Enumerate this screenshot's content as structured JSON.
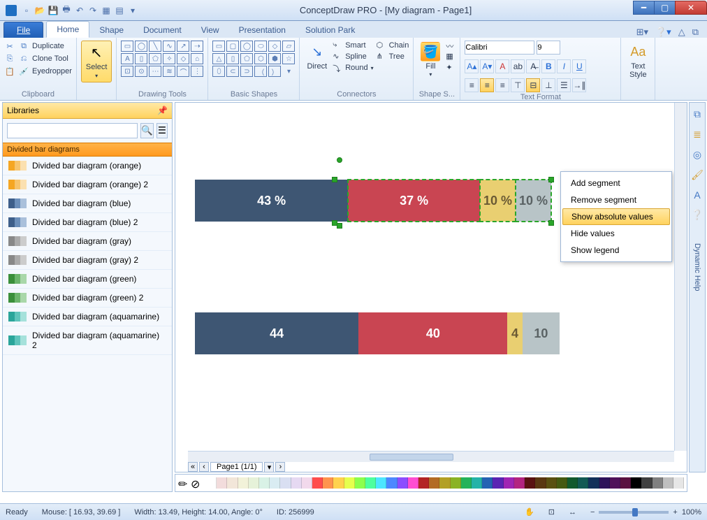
{
  "window": {
    "title": "ConceptDraw PRO - [My diagram - Page1]"
  },
  "tabs": {
    "file": "File",
    "items": [
      "Home",
      "Shape",
      "Document",
      "View",
      "Presentation",
      "Solution Park"
    ],
    "active": "Home"
  },
  "ribbon": {
    "clipboard": {
      "label": "Clipboard",
      "duplicate": "Duplicate",
      "clone": "Clone Tool",
      "eyedropper": "Eyedropper"
    },
    "select": {
      "label": "Select"
    },
    "drawing": {
      "label": "Drawing Tools"
    },
    "basic": {
      "label": "Basic Shapes"
    },
    "connectors": {
      "label": "Connectors",
      "direct": "Direct",
      "smart": "Smart",
      "spline": "Spline",
      "round": "Round",
      "chain": "Chain",
      "tree": "Tree"
    },
    "fill": {
      "label": "Fill"
    },
    "shapestyle": {
      "label": "Shape S..."
    },
    "textformat": {
      "label": "Text Format",
      "font": "Calibri",
      "size": "9"
    },
    "textstyle": {
      "label": "Text\nStyle"
    }
  },
  "libraries": {
    "title": "Libraries",
    "category": "Divided bar diagrams",
    "items": [
      "Divided bar diagram (orange)",
      "Divided bar diagram (orange) 2",
      "Divided bar diagram (blue)",
      "Divided bar diagram (blue) 2",
      "Divided bar diagram (gray)",
      "Divided bar diagram (gray) 2",
      "Divided bar diagram (green)",
      "Divided bar diagram (green) 2",
      "Divided bar diagram (aquamarine)",
      "Divided bar diagram (aquamarine) 2"
    ],
    "thumbColors": [
      [
        "#f5a623",
        "#f7c46c",
        "#fbe0b0"
      ],
      [
        "#f5a623",
        "#f7c46c",
        "#fbe0b0"
      ],
      [
        "#3e5f8a",
        "#6c8fba",
        "#aac0db"
      ],
      [
        "#3e5f8a",
        "#6c8fba",
        "#aac0db"
      ],
      [
        "#888",
        "#aaa",
        "#ccc"
      ],
      [
        "#888",
        "#aaa",
        "#ccc"
      ],
      [
        "#3a8f3a",
        "#6cb56c",
        "#a9d7a9"
      ],
      [
        "#3a8f3a",
        "#6cb56c",
        "#a9d7a9"
      ],
      [
        "#2aa59a",
        "#5fc4bb",
        "#a5e1db"
      ],
      [
        "#2aa59a",
        "#5fc4bb",
        "#a5e1db"
      ]
    ]
  },
  "chart": {
    "bar1": {
      "type": "divided-bar",
      "segments": [
        {
          "label": "43 %",
          "value": 43,
          "color": "#3e5673",
          "textColor": "#ffffff"
        },
        {
          "label": "37 %",
          "value": 37,
          "color": "#c94552",
          "textColor": "#ffffff"
        },
        {
          "label": "10 %",
          "value": 10,
          "color": "#e9cf71",
          "textColor": "#6a5a34"
        },
        {
          "label": "10 %",
          "value": 10,
          "color": "#b8c4c7",
          "textColor": "#5a6264"
        }
      ],
      "selected": true
    },
    "bar2": {
      "type": "divided-bar",
      "segments": [
        {
          "label": "44",
          "value": 44,
          "color": "#3e5673",
          "textColor": "#ffffff"
        },
        {
          "label": "40",
          "value": 40,
          "color": "#c94552",
          "textColor": "#ffffff"
        },
        {
          "label": "4",
          "value": 4,
          "color": "#e9cf71",
          "textColor": "#6a5a34"
        },
        {
          "label": "10",
          "value": 10,
          "color": "#b8c4c7",
          "textColor": "#5a6264"
        }
      ]
    }
  },
  "contextMenu": {
    "items": [
      "Add segment",
      "Remove segment",
      "Show absolute values",
      "Hide values",
      "Show legend"
    ],
    "highlighted": 2
  },
  "pageTabs": {
    "label": "Page1 (1/1)"
  },
  "palette": [
    "#ffffff",
    "#f2dcdc",
    "#f2e6d9",
    "#f2f2d9",
    "#e6f2d9",
    "#d9f2e6",
    "#d9ecf2",
    "#d9dff2",
    "#e6d9f2",
    "#f2d9ec",
    "#ff4d4d",
    "#ff944d",
    "#ffd24d",
    "#e6ff4d",
    "#8cff4d",
    "#4dff9f",
    "#4de6ff",
    "#4d88ff",
    "#8c4dff",
    "#ff4dd2",
    "#b32424",
    "#b36b24",
    "#b3a024",
    "#8ab324",
    "#24b35a",
    "#24b3a8",
    "#2462b3",
    "#5a24b3",
    "#a024b3",
    "#b32480",
    "#5a1212",
    "#5a3712",
    "#5a5012",
    "#455a12",
    "#125a2d",
    "#125a54",
    "#12315a",
    "#2d125a",
    "#50125a",
    "#5a1240",
    "#000000",
    "#404040",
    "#808080",
    "#bfbfbf",
    "#e6e6e6"
  ],
  "status": {
    "ready": "Ready",
    "mouse": "Mouse: [ 16.93, 39.69 ]",
    "size": "Width: 13.49,  Height: 14.00,  Angle: 0°",
    "id": "ID: 256999",
    "zoom": "100%"
  },
  "rightStrip": {
    "label": "Dynamic Help"
  }
}
